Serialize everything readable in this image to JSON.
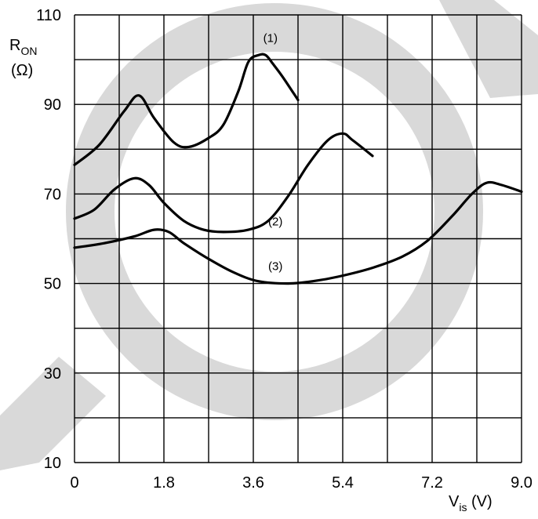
{
  "chart_data": {
    "type": "line",
    "title": "",
    "xlabel": {
      "main": "V",
      "sub": "is",
      "unit": " (V)"
    },
    "ylabel": {
      "main": "R",
      "sub": "ON",
      "unit": "(Ω)"
    },
    "xlim": [
      0,
      9.0
    ],
    "ylim": [
      10,
      110
    ],
    "x_ticks": [
      0,
      1.8,
      3.6,
      5.4,
      7.2,
      9.0
    ],
    "x_tick_labels": [
      "0",
      "1.8",
      "3.6",
      "5.4",
      "7.2",
      "9.0"
    ],
    "y_ticks": [
      10,
      30,
      50,
      70,
      90,
      110
    ],
    "y_tick_labels": [
      "10",
      "30",
      "50",
      "70",
      "90",
      "110"
    ],
    "grid": true,
    "grid_x_step": 0.9,
    "grid_y_step": 10,
    "series": [
      {
        "name": "(1)",
        "label_at": [
          3.8,
          104
        ],
        "x": [
          0,
          0.5,
          1.0,
          1.3,
          1.6,
          2.0,
          2.3,
          2.7,
          3.0,
          3.3,
          3.5,
          3.7,
          3.85,
          4.0,
          4.2,
          4.5
        ],
        "y": [
          76.5,
          81,
          88.5,
          92,
          87,
          81.5,
          80.5,
          82.5,
          85.5,
          93,
          99.5,
          101,
          101,
          99,
          96,
          91
        ]
      },
      {
        "name": "(2)",
        "label_at": [
          3.9,
          63
        ],
        "x": [
          0,
          0.4,
          0.8,
          1.2,
          1.5,
          1.8,
          2.2,
          2.6,
          3.0,
          3.5,
          3.9,
          4.3,
          4.7,
          5.1,
          5.4,
          5.6,
          6.0
        ],
        "y": [
          64.5,
          66.5,
          71,
          73.5,
          72,
          68,
          64,
          62,
          61.5,
          62,
          64,
          69.5,
          76.5,
          82,
          83.5,
          82,
          78.5
        ]
      },
      {
        "name": "(3)",
        "label_at": [
          3.9,
          53
        ],
        "x": [
          0,
          0.6,
          1.2,
          1.6,
          1.9,
          2.2,
          2.7,
          3.2,
          3.7,
          4.3,
          4.8,
          5.3,
          6.0,
          6.6,
          7.1,
          7.6,
          8.0,
          8.3,
          8.6,
          9.0
        ],
        "y": [
          58,
          59,
          60.5,
          62,
          61.5,
          59,
          55.5,
          52.5,
          50.5,
          50,
          50.5,
          51.5,
          53.5,
          56,
          59.5,
          65,
          70,
          72.5,
          72,
          70.5
        ]
      }
    ]
  }
}
